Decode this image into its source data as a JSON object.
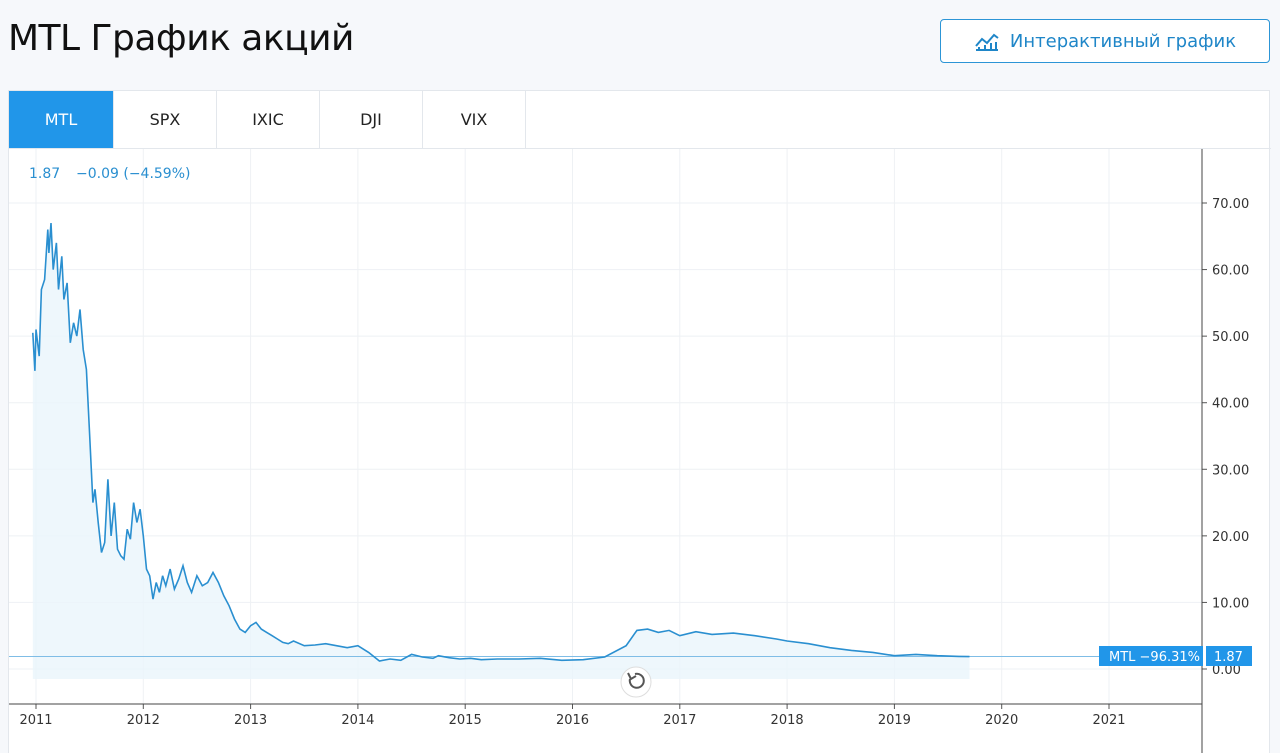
{
  "header": {
    "title": "MTL График акций",
    "interactive_button_label": "Интерактивный график"
  },
  "tabs": [
    {
      "label": "MTL",
      "active": true
    },
    {
      "label": "SPX",
      "active": false
    },
    {
      "label": "IXIC",
      "active": false
    },
    {
      "label": "DJI",
      "active": false
    },
    {
      "label": "VIX",
      "active": false
    }
  ],
  "quote": {
    "price": "1.87",
    "change": "−0.09 (−4.59%)"
  },
  "colors": {
    "line": "#2a8fd0",
    "accent": "#2196e9"
  },
  "chart_data": {
    "type": "area",
    "x_ticks": [
      "2011",
      "2012",
      "2013",
      "2014",
      "2015",
      "2016",
      "2017",
      "2018",
      "2019",
      "2020",
      "2021"
    ],
    "y_ticks": [
      "70.00",
      "60.00",
      "50.00",
      "40.00",
      "30.00",
      "20.00",
      "10.00",
      "0.00"
    ],
    "ylim": [
      0,
      70
    ],
    "xlim": [
      2010.97,
      2022.0
    ],
    "grid": true,
    "last_value_label": "MTL −96.31%",
    "last_value": "1.87",
    "series": [
      {
        "x": [
          2010.97,
          2010.99,
          2011.0,
          2011.03,
          2011.05,
          2011.08,
          2011.11,
          2011.12,
          2011.14,
          2011.16,
          2011.19,
          2011.21,
          2011.24,
          2011.26,
          2011.29,
          2011.32,
          2011.35,
          2011.38,
          2011.41,
          2011.44,
          2011.47,
          2011.5,
          2011.53,
          2011.55,
          2011.58,
          2011.61,
          2011.64,
          2011.67,
          2011.7,
          2011.73,
          2011.76,
          2011.79,
          2011.82,
          2011.85,
          2011.88,
          2011.91,
          2011.94,
          2011.97,
          2012.0,
          2012.03,
          2012.06,
          2012.09,
          2012.12,
          2012.15,
          2012.18,
          2012.21,
          2012.25,
          2012.29,
          2012.33,
          2012.37,
          2012.41,
          2012.45,
          2012.5,
          2012.55,
          2012.6,
          2012.65,
          2012.7,
          2012.75,
          2012.8,
          2012.85,
          2012.9,
          2012.95,
          2013.0,
          2013.05,
          2013.1,
          2013.15,
          2013.2,
          2013.25,
          2013.3,
          2013.35,
          2013.4,
          2013.5,
          2013.6,
          2013.7,
          2013.8,
          2013.9,
          2014.0,
          2014.1,
          2014.2,
          2014.3,
          2014.4,
          2014.5,
          2014.6,
          2014.7,
          2014.75,
          2014.85,
          2014.95,
          2015.05,
          2015.15,
          2015.3,
          2015.5,
          2015.7,
          2015.9,
          2016.1,
          2016.3,
          2016.5,
          2016.6,
          2016.7,
          2016.8,
          2016.9,
          2017.0,
          2017.15,
          2017.3,
          2017.5,
          2017.7,
          2017.9,
          2018.0,
          2018.2,
          2018.4,
          2018.6,
          2018.8,
          2019.0,
          2019.2,
          2019.4,
          2019.6,
          2019.7
        ],
        "y": [
          50.5,
          44.8,
          51.0,
          47.0,
          57.0,
          58.5,
          66.0,
          62.5,
          67.0,
          60.0,
          64.0,
          57.0,
          62.0,
          55.5,
          58.0,
          49.0,
          52.0,
          50.0,
          54.0,
          48.0,
          45.0,
          35.0,
          25.0,
          27.0,
          22.0,
          17.5,
          19.0,
          28.5,
          20.0,
          25.0,
          18.0,
          17.0,
          16.5,
          21.0,
          19.5,
          25.0,
          22.0,
          24.0,
          20.0,
          15.0,
          14.0,
          10.5,
          13.0,
          11.5,
          14.0,
          12.5,
          15.0,
          12.0,
          13.5,
          15.5,
          13.0,
          11.5,
          14.0,
          12.5,
          13.0,
          14.5,
          13.0,
          11.0,
          9.5,
          7.5,
          6.0,
          5.5,
          6.5,
          7.0,
          6.0,
          5.5,
          5.0,
          4.5,
          4.0,
          3.8,
          4.2,
          3.5,
          3.6,
          3.8,
          3.5,
          3.2,
          3.5,
          2.5,
          1.2,
          1.5,
          1.3,
          2.2,
          1.8,
          1.6,
          2.0,
          1.7,
          1.5,
          1.6,
          1.4,
          1.5,
          1.5,
          1.6,
          1.3,
          1.4,
          1.8,
          3.5,
          5.8,
          6.0,
          5.5,
          5.8,
          5.0,
          5.6,
          5.2,
          5.4,
          5.0,
          4.5,
          4.2,
          3.8,
          3.2,
          2.8,
          2.5,
          2.0,
          2.2,
          2.0,
          1.9,
          1.87
        ]
      }
    ]
  }
}
